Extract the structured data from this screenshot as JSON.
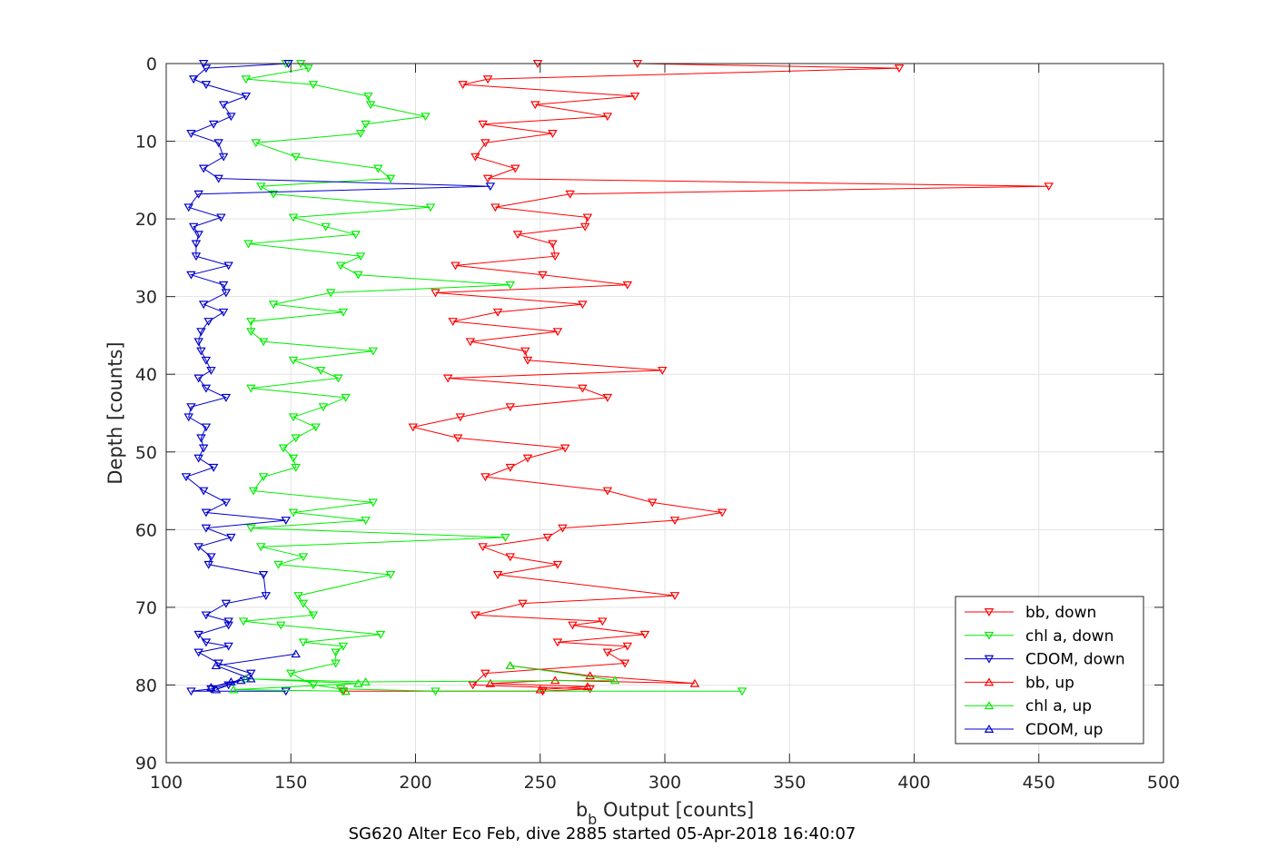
{
  "chart_data": {
    "type": "line",
    "title": "",
    "xlabel_main": "b",
    "xlabel_sub": "b",
    "xlabel_rest": " Output [counts]",
    "ylabel": "Depth [counts]",
    "caption": "SG620 Alter Eco Feb, dive 2885 started 05-Apr-2018 16:40:07",
    "xlim": [
      100,
      500
    ],
    "ylim": [
      0,
      90
    ],
    "y_reversed": true,
    "grid": true,
    "legend_position": "bottom-right",
    "x_ticks": [
      "100",
      "150",
      "200",
      "250",
      "300",
      "350",
      "400",
      "450",
      "500"
    ],
    "y_ticks": [
      "0",
      "10",
      "20",
      "30",
      "40",
      "50",
      "60",
      "70",
      "80",
      "90"
    ],
    "colors": {
      "red": "#ff0000",
      "green": "#00ee00",
      "blue": "#0000cc"
    },
    "series": [
      {
        "name": "bb, down",
        "color": "#ff0000",
        "marker": "triangle-down",
        "points": [
          [
            249,
            0
          ],
          [
            289,
            0
          ],
          [
            394,
            0.6
          ],
          [
            229,
            2
          ],
          [
            219,
            2.7
          ],
          [
            288,
            4.2
          ],
          [
            248,
            5.3
          ],
          [
            277,
            6.8
          ],
          [
            227,
            7.8
          ],
          [
            255,
            9
          ],
          [
            228,
            10.2
          ],
          [
            224,
            12
          ],
          [
            240,
            13.5
          ],
          [
            229,
            14.8
          ],
          [
            454,
            15.8
          ],
          [
            262,
            16.8
          ],
          [
            232,
            18.5
          ],
          [
            269,
            19.8
          ],
          [
            268,
            21
          ],
          [
            241,
            22
          ],
          [
            255,
            23.2
          ],
          [
            256,
            24.8
          ],
          [
            216,
            26
          ],
          [
            251,
            27.2
          ],
          [
            285,
            28.5
          ],
          [
            208,
            29.5
          ],
          [
            267,
            31
          ],
          [
            233,
            32
          ],
          [
            215,
            33.2
          ],
          [
            257,
            34.5
          ],
          [
            222,
            35.8
          ],
          [
            244,
            37
          ],
          [
            245,
            38.2
          ],
          [
            299,
            39.5
          ],
          [
            213,
            40.5
          ],
          [
            267,
            41.8
          ],
          [
            277,
            43
          ],
          [
            238,
            44.2
          ],
          [
            218,
            45.5
          ],
          [
            199,
            46.8
          ],
          [
            217,
            48.2
          ],
          [
            260,
            49.5
          ],
          [
            245,
            50.8
          ],
          [
            238,
            52
          ],
          [
            228,
            53.2
          ],
          [
            277,
            55
          ],
          [
            295,
            56.5
          ],
          [
            323,
            57.8
          ],
          [
            304,
            58.8
          ],
          [
            259,
            59.8
          ],
          [
            253,
            61
          ],
          [
            227,
            62.2
          ],
          [
            238,
            63.5
          ],
          [
            257,
            64.5
          ],
          [
            233,
            65.8
          ],
          [
            304,
            68.5
          ],
          [
            243,
            69.5
          ],
          [
            224,
            71
          ],
          [
            275,
            71.8
          ],
          [
            263,
            72.3
          ],
          [
            292,
            73.5
          ],
          [
            257,
            74.5
          ],
          [
            285,
            75
          ],
          [
            277,
            75.8
          ],
          [
            284,
            77.2
          ],
          [
            228,
            78.5
          ],
          [
            223,
            80
          ],
          [
            270,
            80.5
          ],
          [
            251,
            80.8
          ],
          [
            171,
            80.8
          ]
        ]
      },
      {
        "name": "chl a, down",
        "color": "#00ee00",
        "marker": "triangle-down",
        "points": [
          [
            148,
            0
          ],
          [
            154,
            0
          ],
          [
            157,
            0.6
          ],
          [
            132,
            2
          ],
          [
            159,
            2.7
          ],
          [
            181,
            4.2
          ],
          [
            182,
            5.3
          ],
          [
            204,
            6.8
          ],
          [
            180,
            7.8
          ],
          [
            178,
            9
          ],
          [
            136,
            10.2
          ],
          [
            152,
            12
          ],
          [
            185,
            13.5
          ],
          [
            190,
            14.8
          ],
          [
            138,
            15.8
          ],
          [
            143,
            16.8
          ],
          [
            206,
            18.5
          ],
          [
            151,
            19.8
          ],
          [
            164,
            21
          ],
          [
            176,
            22
          ],
          [
            133,
            23.2
          ],
          [
            178,
            24.8
          ],
          [
            170,
            26
          ],
          [
            177,
            27.2
          ],
          [
            238,
            28.5
          ],
          [
            166,
            29.5
          ],
          [
            143,
            31
          ],
          [
            171,
            32
          ],
          [
            134,
            33.2
          ],
          [
            134,
            34.5
          ],
          [
            139,
            35.8
          ],
          [
            183,
            37
          ],
          [
            151,
            38.2
          ],
          [
            162,
            39.5
          ],
          [
            169,
            40.5
          ],
          [
            134,
            41.8
          ],
          [
            172,
            43
          ],
          [
            163,
            44.2
          ],
          [
            151,
            45.5
          ],
          [
            160,
            46.8
          ],
          [
            152,
            48.2
          ],
          [
            147,
            49.5
          ],
          [
            151,
            50.8
          ],
          [
            152,
            52
          ],
          [
            139,
            53.2
          ],
          [
            135,
            55
          ],
          [
            183,
            56.5
          ],
          [
            151,
            57.8
          ],
          [
            180,
            58.8
          ],
          [
            134,
            59.8
          ],
          [
            236,
            61
          ],
          [
            138,
            62.2
          ],
          [
            155,
            63.5
          ],
          [
            145,
            64.5
          ],
          [
            190,
            65.8
          ],
          [
            153,
            68.5
          ],
          [
            155,
            69.5
          ],
          [
            159,
            71
          ],
          [
            131,
            71.8
          ],
          [
            146,
            72.3
          ],
          [
            186,
            73.5
          ],
          [
            155,
            74.5
          ],
          [
            171,
            75
          ],
          [
            168,
            75.8
          ],
          [
            168,
            77.2
          ],
          [
            150,
            78.5
          ],
          [
            159,
            80
          ],
          [
            170,
            80.5
          ],
          [
            208,
            80.8
          ],
          [
            331,
            80.8
          ]
        ]
      },
      {
        "name": "CDOM, down",
        "color": "#0000cc",
        "marker": "triangle-down",
        "points": [
          [
            115,
            0
          ],
          [
            149,
            0
          ],
          [
            116,
            0.6
          ],
          [
            111,
            2
          ],
          [
            116,
            2.7
          ],
          [
            132,
            4.2
          ],
          [
            123,
            5.3
          ],
          [
            126,
            6.8
          ],
          [
            119,
            7.8
          ],
          [
            110,
            9
          ],
          [
            121,
            10.2
          ],
          [
            123,
            12
          ],
          [
            115,
            13.5
          ],
          [
            121,
            14.8
          ],
          [
            230,
            15.8
          ],
          [
            113,
            16.8
          ],
          [
            109,
            18.5
          ],
          [
            122,
            19.8
          ],
          [
            111,
            21
          ],
          [
            113,
            22
          ],
          [
            112,
            23.2
          ],
          [
            112,
            24.8
          ],
          [
            125,
            26
          ],
          [
            110,
            27.2
          ],
          [
            123,
            28.5
          ],
          [
            124,
            29.5
          ],
          [
            115,
            31
          ],
          [
            123,
            32
          ],
          [
            117,
            33.2
          ],
          [
            114,
            34.5
          ],
          [
            113,
            35.8
          ],
          [
            114,
            37
          ],
          [
            116,
            38.2
          ],
          [
            118,
            39.5
          ],
          [
            113,
            40.5
          ],
          [
            116,
            41.8
          ],
          [
            124,
            43
          ],
          [
            110,
            44.2
          ],
          [
            109,
            45.5
          ],
          [
            116,
            46.8
          ],
          [
            114,
            48.2
          ],
          [
            115,
            49.5
          ],
          [
            113,
            50.8
          ],
          [
            119,
            52
          ],
          [
            108,
            53.2
          ],
          [
            115,
            55
          ],
          [
            124,
            56.5
          ],
          [
            116,
            57.8
          ],
          [
            148,
            58.8
          ],
          [
            116,
            59.8
          ],
          [
            126,
            61
          ],
          [
            113,
            62.2
          ],
          [
            118,
            63.5
          ],
          [
            117,
            64.5
          ],
          [
            139,
            65.8
          ],
          [
            140,
            68.5
          ],
          [
            124,
            69.5
          ],
          [
            116,
            71
          ],
          [
            125,
            71.8
          ],
          [
            125,
            72.3
          ],
          [
            113,
            73.5
          ],
          [
            116,
            74.5
          ],
          [
            125,
            75
          ],
          [
            113,
            75.8
          ],
          [
            121,
            77.2
          ],
          [
            134,
            78.5
          ],
          [
            125,
            80
          ],
          [
            118,
            80.5
          ],
          [
            110,
            80.8
          ],
          [
            148,
            80.8
          ]
        ]
      },
      {
        "name": "bb, up",
        "color": "#ff0000",
        "marker": "triangle-up",
        "points": [
          [
            238,
            77.5
          ],
          [
            270,
            78.8
          ],
          [
            312,
            79.8
          ],
          [
            256,
            79.4
          ],
          [
            230,
            79.8
          ],
          [
            269,
            80.2
          ],
          [
            250,
            80.6
          ]
        ]
      },
      {
        "name": "chl a, up",
        "color": "#00ee00",
        "marker": "triangle-up",
        "points": [
          [
            238,
            77.5
          ],
          [
            280,
            79.4
          ],
          [
            180,
            79.6
          ],
          [
            132,
            79.2
          ],
          [
            177,
            79.8
          ],
          [
            127,
            80.6
          ],
          [
            172,
            80.8
          ]
        ]
      },
      {
        "name": "CDOM, up",
        "color": "#0000cc",
        "marker": "triangle-up",
        "points": [
          [
            152,
            76
          ],
          [
            120,
            77.5
          ],
          [
            134,
            79.2
          ],
          [
            126,
            79.6
          ],
          [
            118,
            80.3
          ],
          [
            130,
            79.4
          ],
          [
            120,
            80.6
          ]
        ]
      }
    ]
  }
}
